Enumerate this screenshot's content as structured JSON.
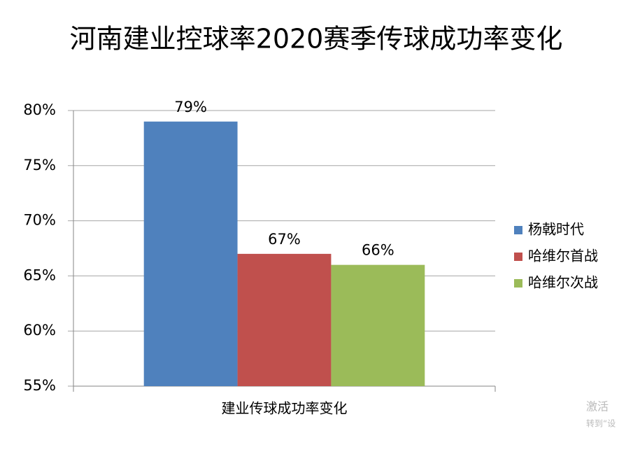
{
  "chart_data": {
    "type": "bar",
    "title": "河南建业控球率2020赛季传球成功率变化",
    "categories": [
      "建业传球成功率变化"
    ],
    "series": [
      {
        "name": "杨戟时代",
        "color": "#4f81bd",
        "values": [
          79
        ],
        "value_labels": [
          "79%"
        ]
      },
      {
        "name": "哈维尔首战",
        "color": "#c0504d",
        "values": [
          67
        ],
        "value_labels": [
          "67%"
        ]
      },
      {
        "name": "哈维尔次战",
        "color": "#9bbb59",
        "values": [
          66
        ],
        "value_labels": [
          "66%"
        ]
      }
    ],
    "ylim": [
      55,
      80
    ],
    "yticks": [
      {
        "value": 55,
        "label": "55%"
      },
      {
        "value": 60,
        "label": "60%"
      },
      {
        "value": 65,
        "label": "65%"
      },
      {
        "value": 70,
        "label": "70%"
      },
      {
        "value": 75,
        "label": "75%"
      },
      {
        "value": 80,
        "label": "80%"
      }
    ],
    "grid": true,
    "legend": "right"
  },
  "watermark": [
    "激活",
    "转到“设"
  ]
}
